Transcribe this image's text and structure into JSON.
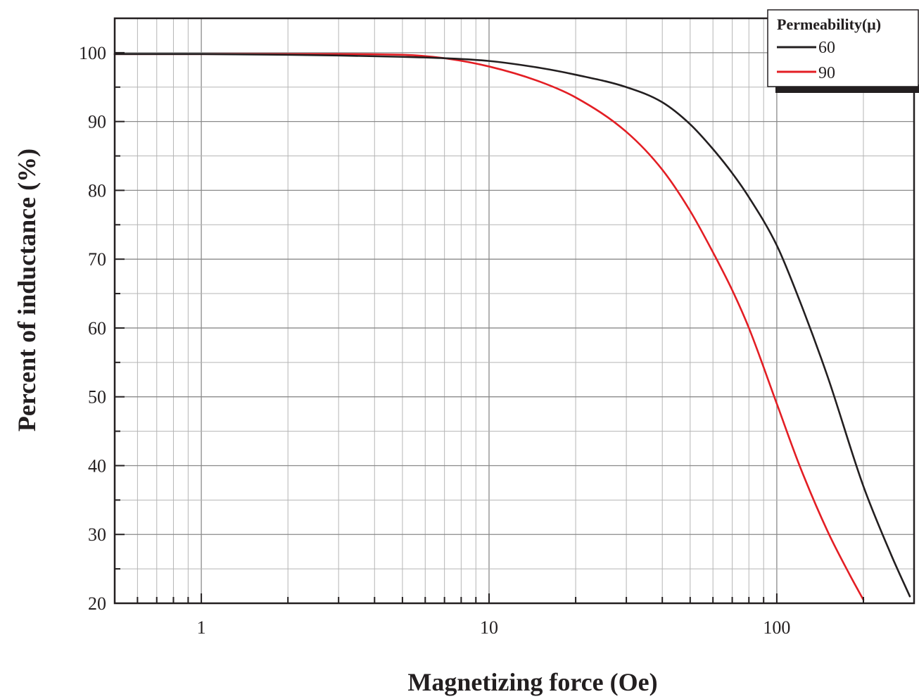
{
  "chart_data": {
    "type": "line",
    "xlabel": "Magnetizing force (Oe)",
    "ylabel": "Percent of inductance (%)",
    "x_scale": "log",
    "xlim": [
      0.5,
      300
    ],
    "ylim": [
      20,
      105
    ],
    "x_ticks": [
      1,
      10,
      100
    ],
    "x_tick_labels": [
      "1",
      "10",
      "100"
    ],
    "y_ticks": [
      20,
      30,
      40,
      50,
      60,
      70,
      80,
      90,
      100
    ],
    "y_tick_labels": [
      "20",
      "30",
      "40",
      "50",
      "60",
      "70",
      "80",
      "90",
      "100"
    ],
    "grid": true,
    "legend": {
      "title": "Permeability(μ)",
      "position": "top-right"
    },
    "series": [
      {
        "name": "60",
        "color": "#231f20",
        "x": [
          0.5,
          1,
          2,
          3,
          5,
          7,
          10,
          15,
          20,
          30,
          40,
          50,
          60,
          70,
          80,
          100,
          120,
          150,
          200,
          250,
          290
        ],
        "y": [
          99.8,
          99.8,
          99.7,
          99.6,
          99.4,
          99.2,
          98.8,
          97.8,
          96.8,
          95,
          92.8,
          89.6,
          86,
          82.5,
          79,
          72,
          64,
          53,
          37,
          27,
          21
        ]
      },
      {
        "name": "90",
        "color": "#e31e24",
        "x": [
          0.5,
          1,
          2,
          3,
          5,
          7,
          10,
          15,
          20,
          30,
          40,
          50,
          60,
          70,
          80,
          100,
          120,
          150,
          180,
          200
        ],
        "y": [
          99.8,
          99.8,
          99.8,
          99.8,
          99.7,
          99.2,
          98,
          95.8,
          93.5,
          88.5,
          83,
          77,
          71,
          65.5,
          60,
          49,
          40,
          30.5,
          24,
          20.5
        ]
      }
    ]
  }
}
